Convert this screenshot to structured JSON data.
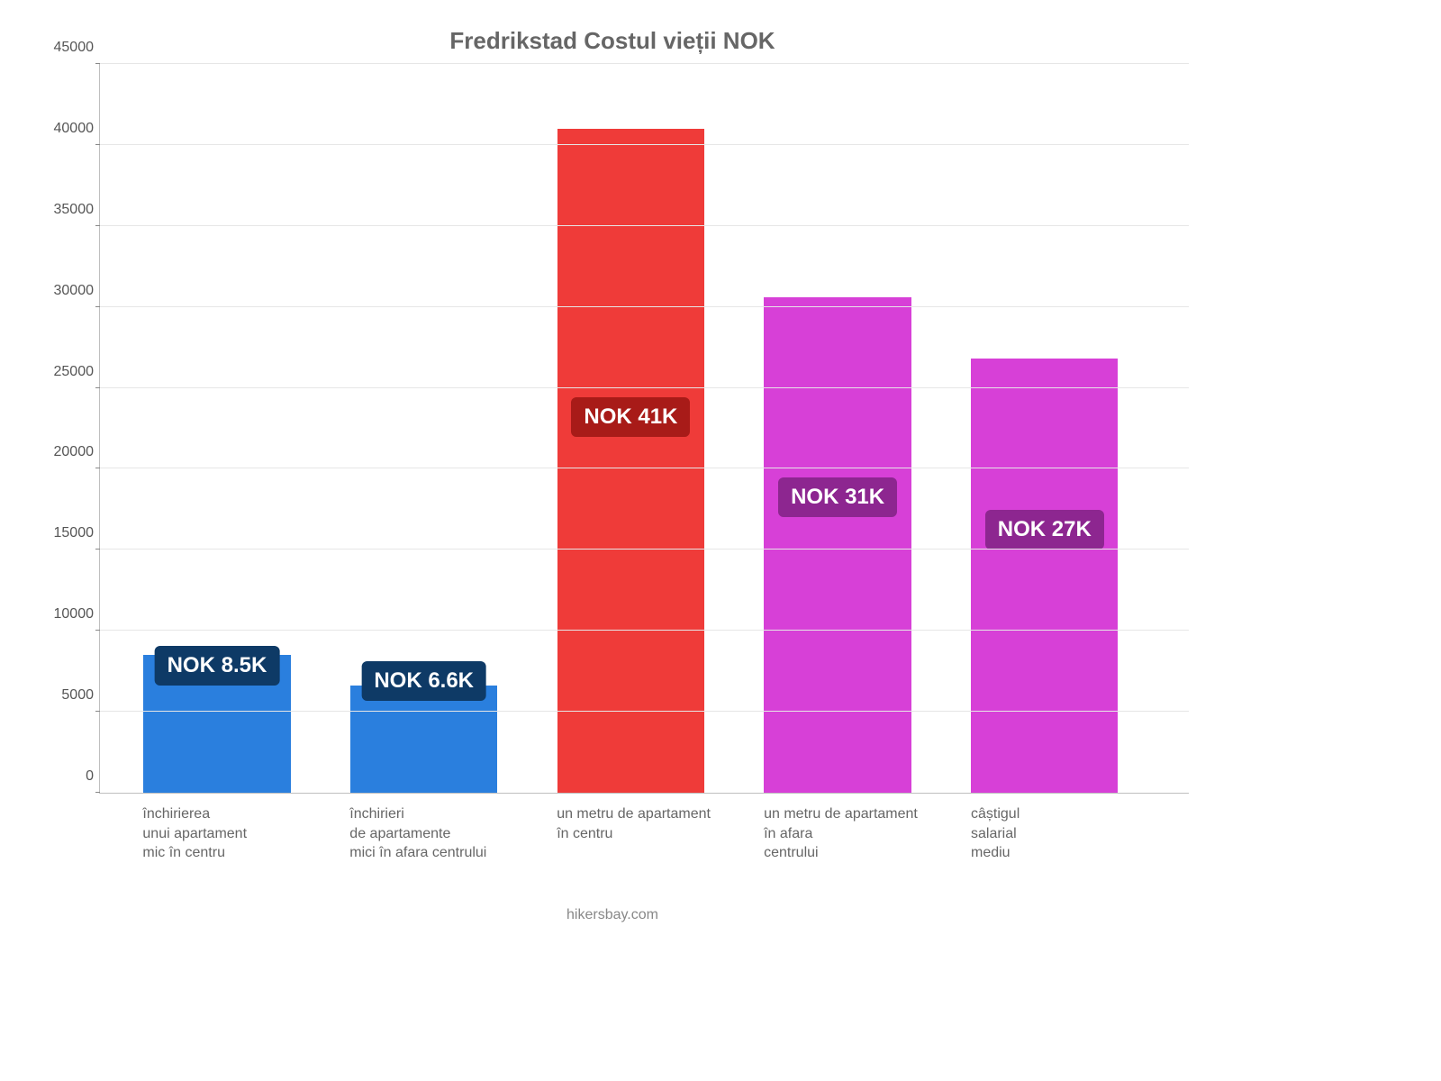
{
  "chart": {
    "type": "bar",
    "title": "Fredrikstad Costul vieții NOK",
    "title_fontsize": 26,
    "title_color": "#666666",
    "background_color": "#ffffff",
    "grid_color": "#e6e6e6",
    "axis_color": "#bfbfbf",
    "tick_font_color": "#555555",
    "tick_fontsize": 16,
    "xlabel_font_color": "#666666",
    "xlabel_fontsize": 16,
    "ylim": [
      0,
      45000
    ],
    "ytick_step": 5000,
    "yticks": [
      {
        "v": 0,
        "label": "0"
      },
      {
        "v": 5000,
        "label": "5000"
      },
      {
        "v": 10000,
        "label": "10000"
      },
      {
        "v": 15000,
        "label": "15000"
      },
      {
        "v": 20000,
        "label": "20000"
      },
      {
        "v": 25000,
        "label": "25000"
      },
      {
        "v": 30000,
        "label": "30000"
      },
      {
        "v": 35000,
        "label": "35000"
      },
      {
        "v": 40000,
        "label": "40000"
      },
      {
        "v": 45000,
        "label": "45000"
      }
    ],
    "bar_width_pct": 13.5,
    "bar_gap_pct": 5.5,
    "bar_left_start_pct": 4.0,
    "label_fontsize": 24,
    "label_padding": "8px 14px",
    "label_border_radius": 6,
    "bars": [
      {
        "xlabel": "închirierea\nunui apartament\nmic în centru",
        "value": 8500,
        "color": "#2a7fde",
        "label_text": "NOK 8.5K",
        "label_bg": "#0e3a66",
        "label_value_anchor": 6600
      },
      {
        "xlabel": "închirieri\nde apartamente\nmici în afara centrului",
        "value": 6600,
        "color": "#2a7fde",
        "label_text": "NOK 6.6K",
        "label_bg": "#0e3a66",
        "label_value_anchor": 5700
      },
      {
        "xlabel": "un metru de apartament\nîn centru",
        "value": 41000,
        "color": "#ef3b39",
        "label_text": "NOK 41K",
        "label_bg": "#a81b18",
        "label_value_anchor": 22000
      },
      {
        "xlabel": "un metru de apartament\nîn afara\ncentrului",
        "value": 30600,
        "color": "#d740d7",
        "label_text": "NOK 31K",
        "label_bg": "#8d2690",
        "label_value_anchor": 17000
      },
      {
        "xlabel": "câștigul\nsalarial\nmediu",
        "value": 26800,
        "color": "#d740d7",
        "label_text": "NOK 27K",
        "label_bg": "#8d2690",
        "label_value_anchor": 15000
      }
    ],
    "attribution": "hikersbay.com",
    "attribution_color": "#888888",
    "attribution_fontsize": 16
  }
}
